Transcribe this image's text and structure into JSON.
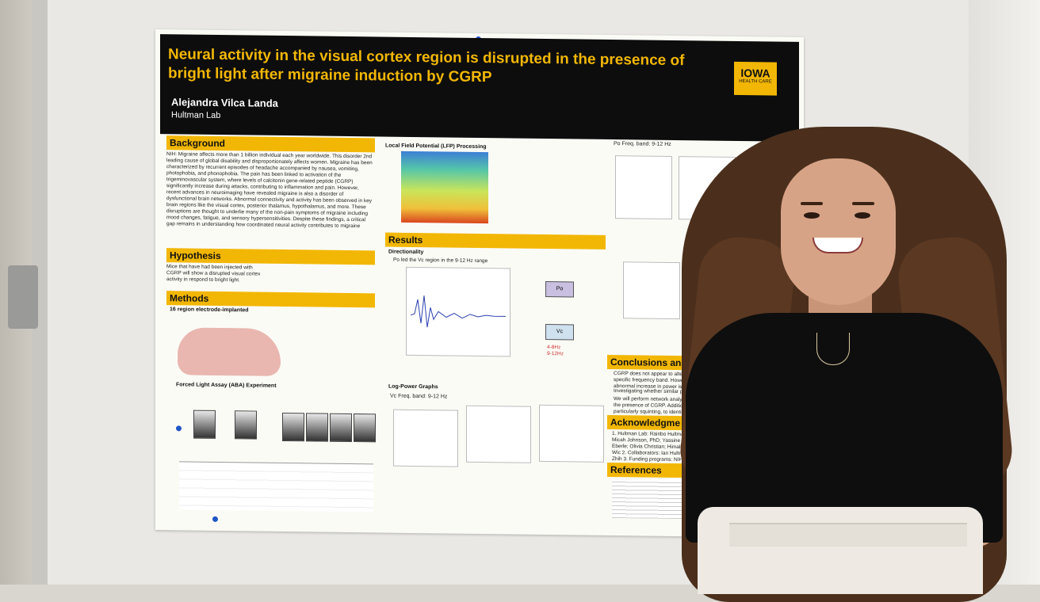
{
  "poster": {
    "title": "Neural activity in the visual cortex region is disrupted in the presence of bright light after migraine induction by CGRP",
    "author": "Alejandra Vilca Landa",
    "lab": "Hultman Lab",
    "logo_main": "IOWA",
    "logo_sub": "HEALTH CARE",
    "sections": {
      "background": "Background",
      "hypothesis": "Hypothesis",
      "methods": "Methods",
      "results": "Results",
      "conclusions": "Conclusions and",
      "acknowledgements": "Acknowledgme",
      "references": "References"
    },
    "background_text": "NIH: Migraine affects more than 1 billion individual each year worldwide. This disorder 2nd leading cause of global disability and disproportionately affects women. Migraine has been characterized by recurrent episodes of headache accompanied by nausea, vomiting, photophobia, and phonophobia. The pain has been linked to activation of the trigeminovascular system, where levels of calcitonin gene-related peptide (CGRP) significantly increase during attacks, contributing to inflammation and pain. However, recent advances in neuroimaging have revealed migraine is also a disorder of dysfunctional brain networks. Abnormal connectivity and activity has been observed in key brain regions like the visual cortex, posterior thalamus, hypothalamus, and more. These disruptions are thought to underlie many of the non-pain symptoms of migraine including mood changes, fatigue, and sensory hypersensitivities. Despite these findings, a critical gap remains in understanding how coordinated neural activity contributes to migraine",
    "hypothesis_text": "Mice that have had been injected with CGRP will show a disrupted visual cortex activity in respond to bright light.",
    "methods_sub": "16 region electrode-implanted",
    "lfp_label": "Local Field Potential (LFP) Processing",
    "directionality_label": "Directionality",
    "directionality_bullet": "Po led the Vc region in the 9-12 Hz range",
    "aba_label": "Forced Light Assay (ABA) Experiment",
    "logpower_label": "Log-Power Graphs",
    "vc_freq": "Vc Freq. band: 9-12 Hz",
    "po_freq": "Po Freq. band: 9-12 Hz",
    "po_node": "Po",
    "vc_node": "Vc",
    "legend_a": "4-8Hz",
    "legend_b": "9-12Hz",
    "conclusion_bullets": [
      "CGRP does not appear to alter b specific frequency band. Howev abnormal increase in power is ob",
      "Investigating whether similar pow",
      "We will perform network analysi the presence of CGRP. Additio particularly squinting, to identify r"
    ],
    "ack_lines": "1. Hultman Lab: Rainbo Hultma Micah Johnson, PhD; Yassine Eberle; Olivia Christian; Himali Wic 2. Collaborators: Ian Hultman, Zhih 3. Funding programs: NIH Din McKnight Endowment Fund for Neu"
  }
}
